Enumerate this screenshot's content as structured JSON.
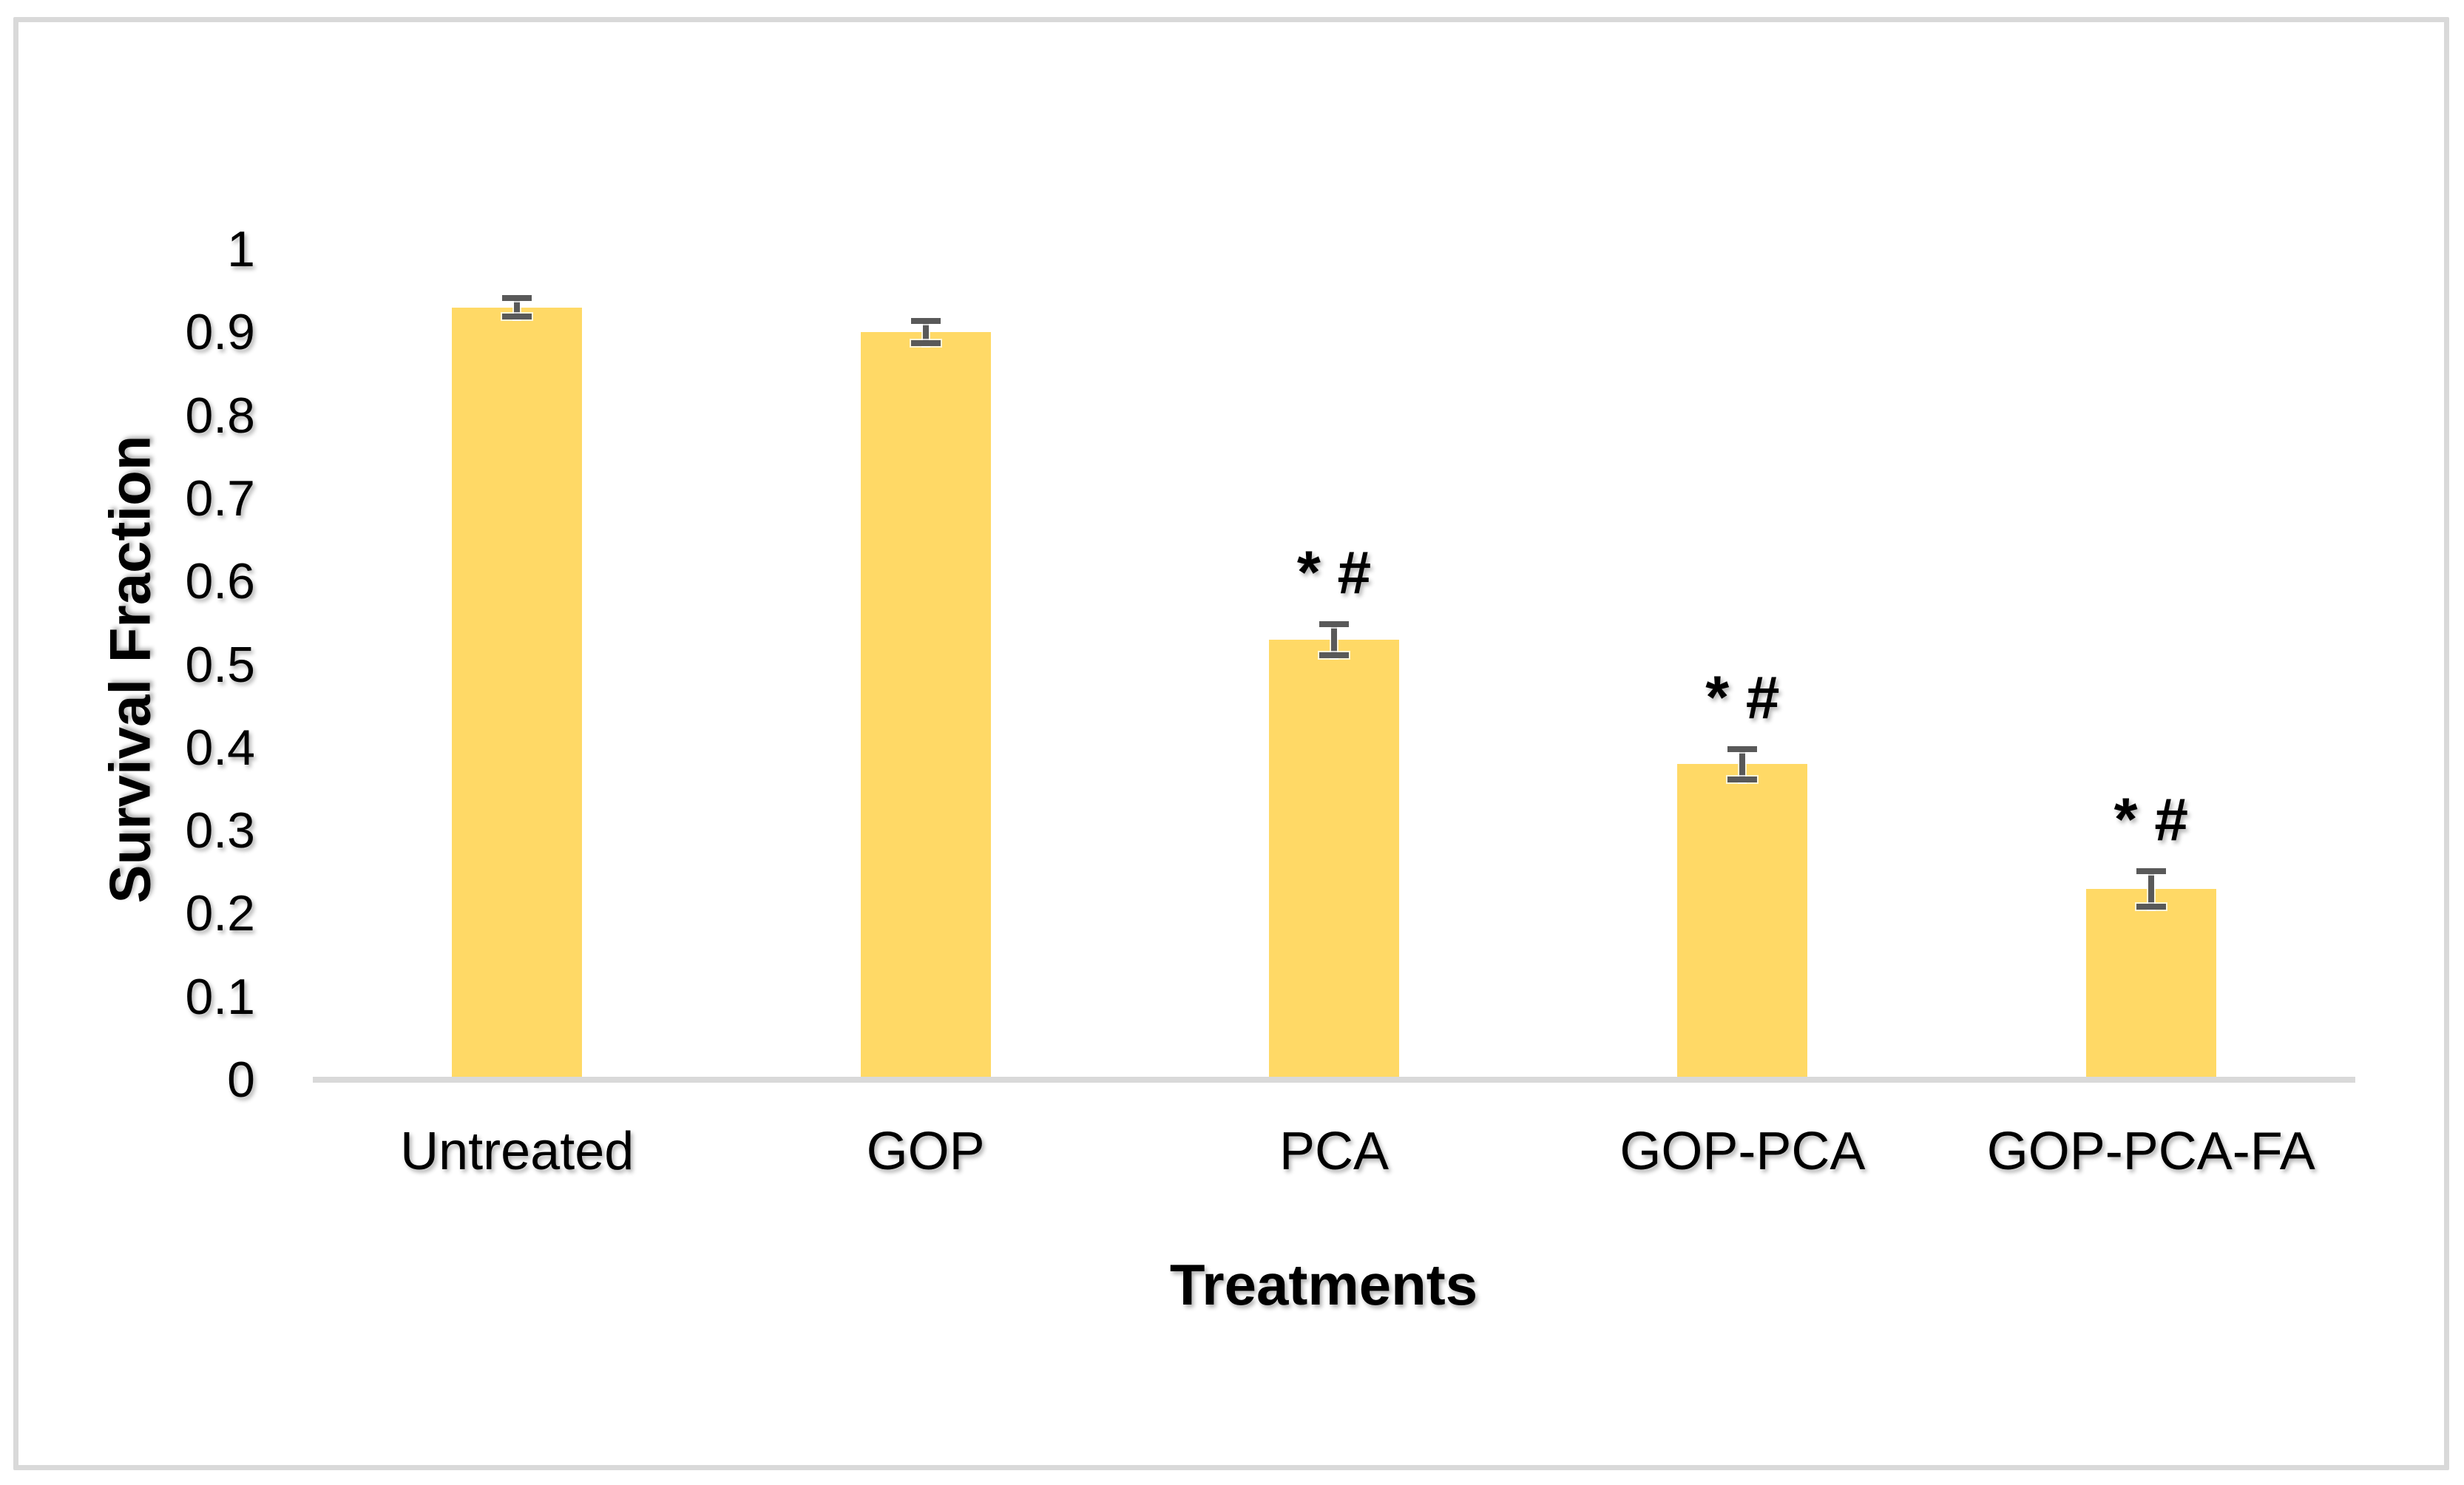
{
  "chart_data": {
    "type": "bar",
    "title": "",
    "xlabel": "Treatments",
    "ylabel": "Survival Fraction",
    "categories": [
      "Untreated",
      "GOP",
      "PCA",
      "GOP-PCA",
      "GOP-PCA-FA"
    ],
    "values": [
      0.93,
      0.9,
      0.53,
      0.38,
      0.23
    ],
    "errors": [
      0.015,
      0.017,
      0.022,
      0.022,
      0.025
    ],
    "annotations": [
      "",
      "",
      "* #",
      "* #",
      "* #"
    ],
    "yticks": [
      0,
      0.1,
      0.2,
      0.3,
      0.4,
      0.5,
      0.6,
      0.7,
      0.8,
      0.9,
      1
    ],
    "ytick_labels": [
      "0",
      "0.1",
      "0.2",
      "0.3",
      "0.4",
      "0.5",
      "0.6",
      "0.7",
      "0.8",
      "0.9",
      "1"
    ],
    "ylim": [
      0,
      1
    ],
    "grid": false,
    "legend": false,
    "bar_color": "#FFD966",
    "error_bar_color": "#595959",
    "axis_line_color": "#D9D9D9",
    "border_color": "#D9D9D9",
    "text_color": "#000000"
  }
}
